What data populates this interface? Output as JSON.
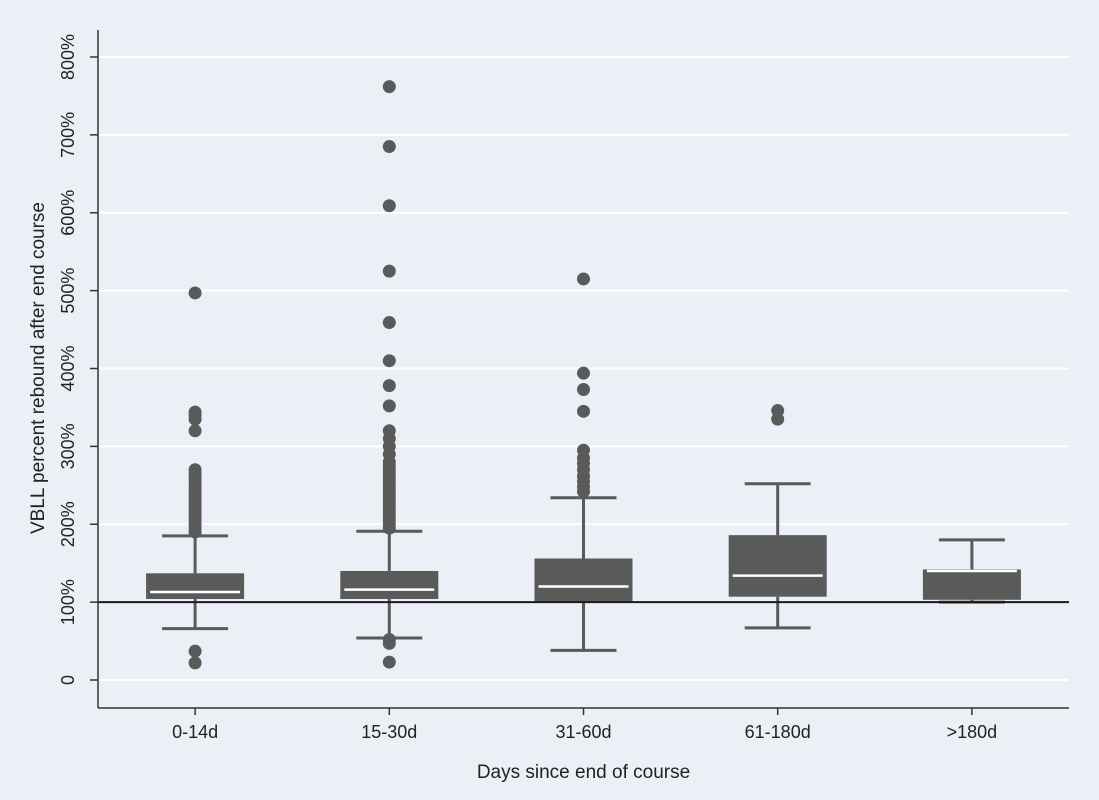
{
  "chart_data": {
    "type": "boxplot",
    "title": "",
    "xlabel": "Days since end of course",
    "ylabel": "VBLL percent rebound after end course",
    "ylim": [
      -35,
      835
    ],
    "yticks": [
      0,
      100,
      200,
      300,
      400,
      500,
      600,
      700,
      800
    ],
    "ytick_labels": [
      "0",
      "100%",
      "200%",
      "300%",
      "400%",
      "500%",
      "600%",
      "700%",
      "800%"
    ],
    "grid": true,
    "reference_line": 100,
    "box_color": "#5a5a5a",
    "median_color": "#ffffff",
    "categories": [
      "0-14d",
      "15-30d",
      "31-60d",
      "61-180d",
      ">180d"
    ],
    "boxes": [
      {
        "category": "0-14d",
        "whisker_low": 66,
        "q1": 104,
        "median": 113,
        "q3": 137,
        "whisker_high": 185,
        "outliers": [
          22,
          37,
          320,
          335,
          340,
          344,
          190,
          195,
          200,
          205,
          210,
          215,
          220,
          225,
          230,
          235,
          240,
          245,
          250,
          255,
          260,
          265,
          270,
          497
        ]
      },
      {
        "category": "15-30d",
        "whisker_low": 54,
        "q1": 104,
        "median": 116,
        "q3": 140,
        "whisker_high": 191,
        "outliers": [
          23,
          47,
          52,
          195,
          200,
          205,
          210,
          215,
          220,
          225,
          230,
          235,
          240,
          245,
          250,
          255,
          260,
          265,
          270,
          275,
          280,
          290,
          300,
          310,
          320,
          352,
          378,
          410,
          459,
          525,
          609,
          685,
          762
        ]
      },
      {
        "category": "31-60d",
        "whisker_low": 38,
        "q1": 100,
        "median": 120,
        "q3": 156,
        "whisker_high": 234,
        "outliers": [
          242,
          248,
          255,
          262,
          270,
          278,
          285,
          295,
          345,
          373,
          394,
          515
        ]
      },
      {
        "category": "61-180d",
        "whisker_low": 67,
        "q1": 107,
        "median": 134,
        "q3": 186,
        "whisker_high": 252,
        "outliers": [
          335,
          346
        ]
      },
      {
        "category": ">180d",
        "whisker_low": 100,
        "q1": 103,
        "median": 140,
        "q3": 142,
        "whisker_high": 180,
        "outliers": []
      }
    ]
  }
}
